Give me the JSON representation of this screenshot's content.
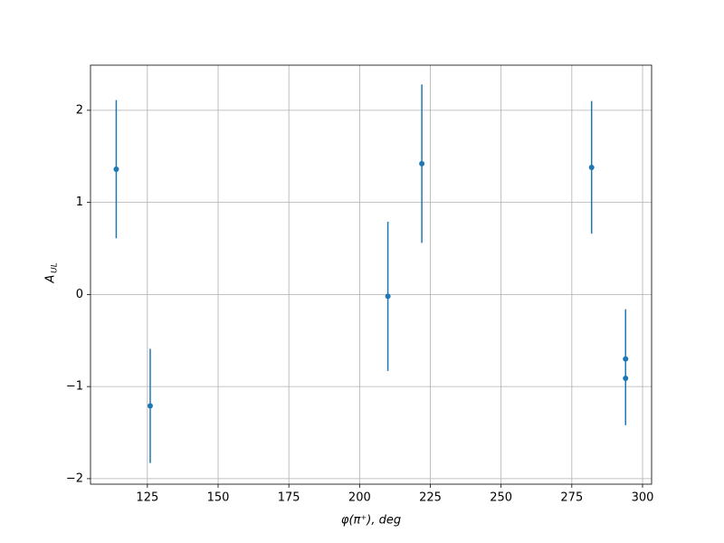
{
  "chart_data": {
    "type": "errorbar",
    "xlabel": "φ(π⁺), deg",
    "ylabel": "A",
    "ylabel_subscript": "UL",
    "xlim": [
      104.9,
      303.2
    ],
    "ylim": [
      -2.06,
      2.49
    ],
    "xticks": [
      125,
      150,
      175,
      200,
      225,
      250,
      275,
      300
    ],
    "yticks": [
      {
        "value": -2,
        "label": "−2"
      },
      {
        "value": -1,
        "label": "−1"
      },
      0,
      1,
      2
    ],
    "grid": true,
    "series": [
      {
        "color": "#1f77b4",
        "x": [
          114,
          126,
          210,
          222,
          282,
          294,
          294
        ],
        "values": [
          1.36,
          -1.21,
          -0.02,
          1.42,
          1.38,
          -0.7,
          -0.91
        ],
        "errors": [
          0.75,
          0.62,
          0.81,
          0.86,
          0.72,
          0.54,
          0.51
        ]
      }
    ]
  }
}
